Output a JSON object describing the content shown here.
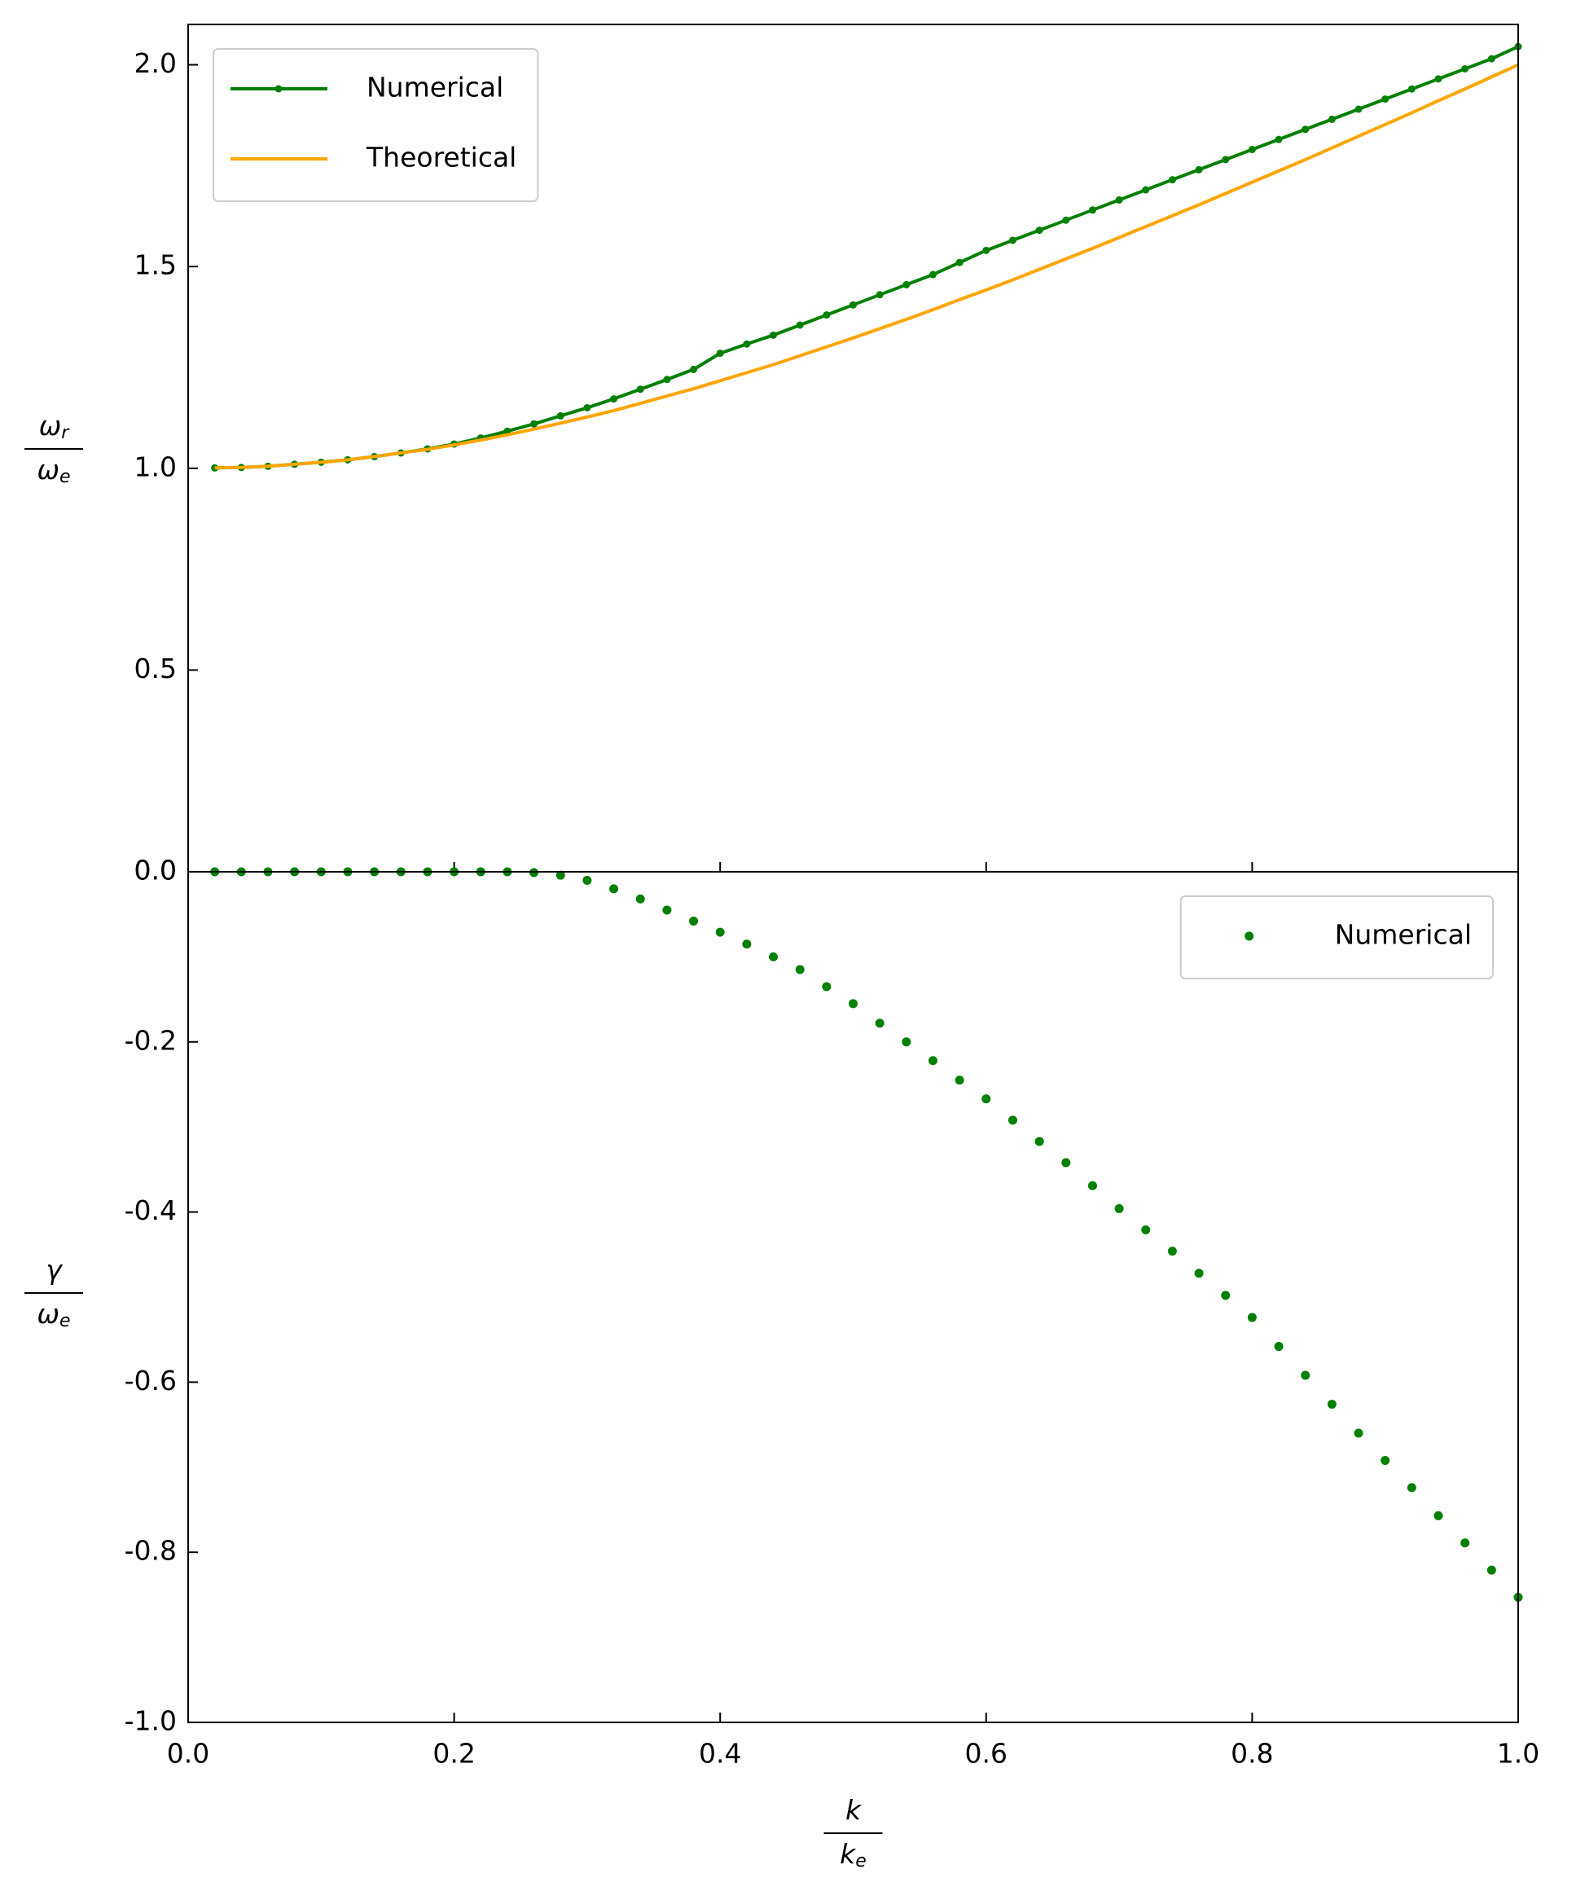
{
  "chart_data": [
    {
      "type": "line",
      "x": [
        0.02,
        0.04,
        0.06,
        0.08,
        0.1,
        0.12,
        0.14,
        0.16,
        0.18,
        0.2,
        0.22,
        0.24,
        0.26,
        0.28,
        0.3,
        0.32,
        0.34,
        0.36,
        0.38,
        0.4,
        0.42,
        0.44,
        0.46,
        0.48,
        0.5,
        0.52,
        0.54,
        0.56,
        0.58,
        0.6,
        0.62,
        0.64,
        0.66,
        0.68,
        0.7,
        0.72,
        0.74,
        0.76,
        0.78,
        0.8,
        0.82,
        0.84,
        0.86,
        0.88,
        0.9,
        0.92,
        0.94,
        0.96,
        0.98,
        1.0
      ],
      "series": [
        {
          "name": "Numerical",
          "color": "#008000",
          "marker": "o",
          "values": [
            1.001,
            1.002,
            1.005,
            1.01,
            1.015,
            1.021,
            1.029,
            1.038,
            1.048,
            1.06,
            1.075,
            1.092,
            1.11,
            1.13,
            1.15,
            1.172,
            1.196,
            1.22,
            1.245,
            1.285,
            1.308,
            1.33,
            1.355,
            1.38,
            1.405,
            1.43,
            1.455,
            1.48,
            1.51,
            1.54,
            1.565,
            1.59,
            1.615,
            1.64,
            1.665,
            1.69,
            1.715,
            1.74,
            1.765,
            1.79,
            1.815,
            1.84,
            1.865,
            1.89,
            1.915,
            1.94,
            1.965,
            1.99,
            2.015,
            2.045
          ]
        },
        {
          "name": "Theoretical",
          "color": "#ffa500",
          "values": [
            1.001,
            1.002,
            1.005,
            1.01,
            1.015,
            1.021,
            1.029,
            1.038,
            1.047,
            1.058,
            1.07,
            1.083,
            1.097,
            1.112,
            1.127,
            1.143,
            1.161,
            1.179,
            1.197,
            1.217,
            1.237,
            1.257,
            1.279,
            1.301,
            1.323,
            1.346,
            1.369,
            1.393,
            1.418,
            1.442,
            1.467,
            1.493,
            1.519,
            1.545,
            1.572,
            1.599,
            1.626,
            1.653,
            1.681,
            1.709,
            1.737,
            1.765,
            1.794,
            1.823,
            1.852,
            1.881,
            1.911,
            1.94,
            1.97,
            2.0
          ]
        }
      ],
      "ylabel": {
        "numerator": {
          "base": "ω",
          "sub": "r"
        },
        "denominator": {
          "base": "ω",
          "sub": "e"
        }
      },
      "xlim": [
        0,
        1
      ],
      "ylim": [
        0,
        2.1
      ],
      "yticks": [
        {
          "value": 0,
          "label": "0.0"
        },
        0.5,
        {
          "value": 1,
          "label": "1.0"
        },
        1.5,
        {
          "value": 2,
          "label": "2.0"
        }
      ],
      "legend": "upper left"
    },
    {
      "type": "scatter",
      "x": [
        0.02,
        0.04,
        0.06,
        0.08,
        0.1,
        0.12,
        0.14,
        0.16,
        0.18,
        0.2,
        0.22,
        0.24,
        0.26,
        0.28,
        0.3,
        0.32,
        0.34,
        0.36,
        0.38,
        0.4,
        0.42,
        0.44,
        0.46,
        0.48,
        0.5,
        0.52,
        0.54,
        0.56,
        0.58,
        0.6,
        0.62,
        0.64,
        0.66,
        0.68,
        0.7,
        0.72,
        0.74,
        0.76,
        0.78,
        0.8,
        0.82,
        0.84,
        0.86,
        0.88,
        0.9,
        0.92,
        0.94,
        0.96,
        0.98,
        1.0
      ],
      "series": [
        {
          "name": "Numerical",
          "color": "#008000",
          "values": [
            0,
            0,
            0,
            0,
            0,
            0,
            0,
            0,
            0,
            0,
            0,
            0,
            -0.001,
            -0.004,
            -0.01,
            -0.02,
            -0.032,
            -0.045,
            -0.058,
            -0.071,
            -0.085,
            -0.1,
            -0.115,
            -0.135,
            -0.155,
            -0.178,
            -0.2,
            -0.222,
            -0.245,
            -0.267,
            -0.292,
            -0.317,
            -0.342,
            -0.369,
            -0.396,
            -0.421,
            -0.446,
            -0.472,
            -0.498,
            -0.524,
            -0.558,
            -0.592,
            -0.626,
            -0.66,
            -0.692,
            -0.724,
            -0.757,
            -0.789,
            -0.821,
            -0.853
          ]
        }
      ],
      "ylabel": {
        "numerator": {
          "base": "γ"
        },
        "denominator": {
          "base": "ω",
          "sub": "e"
        }
      },
      "xlabel": {
        "numerator": {
          "base": "k"
        },
        "denominator": {
          "base": "k",
          "sub": "e"
        }
      },
      "xlim": [
        0,
        1
      ],
      "ylim": [
        -1,
        0
      ],
      "xticks": [
        {
          "value": 0,
          "label": "0.0"
        },
        0.2,
        0.4,
        0.6,
        0.8,
        {
          "value": 1,
          "label": "1.0"
        }
      ],
      "yticks": [
        {
          "value": -1,
          "label": "-1.0"
        },
        -0.8,
        -0.6,
        -0.4,
        -0.2,
        {
          "value": 0,
          "label": "0.0"
        }
      ],
      "legend": "upper right"
    }
  ]
}
